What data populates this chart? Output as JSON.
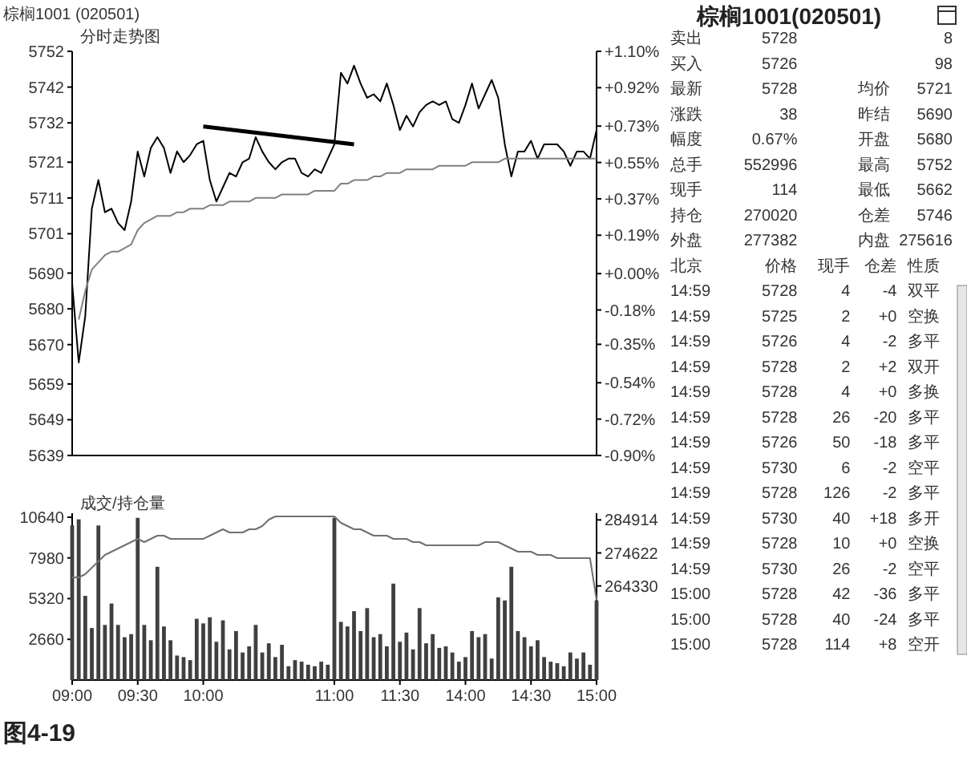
{
  "chart_data": [
    {
      "type": "line",
      "title": "棕榈1001 (020501)",
      "subtitle": "分时走势图",
      "categories": [
        null,
        null,
        null,
        null,
        null,
        null,
        null,
        null,
        null,
        null,
        null,
        null,
        null,
        null,
        null,
        null,
        null,
        null,
        null,
        null,
        null,
        null,
        null,
        null,
        null,
        null,
        null,
        null,
        null,
        null,
        null,
        null,
        null,
        null,
        null,
        null,
        null,
        null,
        null,
        null,
        null,
        null,
        null,
        null,
        null,
        null,
        null,
        null,
        null,
        null,
        null,
        null,
        null,
        null,
        null,
        null,
        null,
        null,
        null,
        null,
        null,
        null,
        null,
        null,
        null,
        null,
        null,
        null,
        null,
        null,
        null,
        null,
        null,
        null,
        null,
        null,
        null,
        null,
        null,
        null,
        null
      ],
      "tick_labels": "y",
      "ylim": [
        5639,
        5752
      ],
      "yticks": [
        5752,
        5742,
        5732,
        5721,
        5711,
        5701,
        5690,
        5680,
        5670,
        5659,
        5649,
        5639
      ],
      "y2lim": [
        -0.9,
        1.1
      ],
      "y2ticks": [
        {
          "value": 1.1,
          "label": "+1.10%"
        },
        {
          "value": 0.92,
          "label": "+0.92%"
        },
        {
          "value": 0.73,
          "label": "+0.73%"
        },
        {
          "value": 0.55,
          "label": "+0.55%"
        },
        {
          "value": 0.37,
          "label": "+0.37%"
        },
        {
          "value": 0.19,
          "label": "+0.19%"
        },
        {
          "value": 0,
          "label": "+0.00%"
        },
        {
          "value": -0.18,
          "label": "-0.18%"
        },
        {
          "value": -0.35,
          "label": "-0.35%"
        },
        {
          "value": -0.54,
          "label": "-0.54%"
        },
        {
          "value": -0.72,
          "label": "-0.72%"
        },
        {
          "value": -0.9,
          "label": "-0.90%"
        }
      ],
      "series": [
        {
          "color": "#000000",
          "values": [
            5687,
            5665,
            5678,
            5708,
            5716,
            5707,
            5708,
            5704,
            5702,
            5710,
            5724,
            5717,
            5725,
            5728,
            5725,
            5718,
            5724,
            5721,
            5723,
            5726,
            5727,
            5716,
            5710,
            5714,
            5718,
            5717,
            5721,
            5722,
            5728,
            5724,
            5721,
            5719,
            5721,
            5722,
            5722,
            5718,
            5717,
            5719,
            5718,
            5722,
            5726,
            5746,
            5743,
            5748,
            5743,
            5739,
            5740,
            5738,
            5743,
            5737,
            5730,
            5734,
            5731,
            5735,
            5737,
            5738,
            5737,
            5738,
            5733,
            5732,
            5737,
            5743,
            5736,
            5740,
            5744,
            5739,
            5726,
            5717,
            5724,
            5724,
            5727,
            5722,
            5726,
            5726,
            5726,
            5724,
            5720,
            5724,
            5724,
            5722,
            5730
          ]
        },
        {
          "color": "#808080",
          "values": [
            null,
            5677,
            5685,
            5691,
            5693,
            5695,
            5696,
            5696,
            5697,
            5698,
            5702,
            5704,
            5705,
            5706,
            5706,
            5706,
            5707,
            5707,
            5708,
            5708,
            5708,
            5709,
            5709,
            5709,
            5710,
            5710,
            5710,
            5710,
            5711,
            5711,
            5711,
            5711,
            5712,
            5712,
            5712,
            5712,
            5712,
            5713,
            5713,
            5713,
            5713,
            5715,
            5715,
            5716,
            5716,
            5716,
            5717,
            5717,
            5718,
            5718,
            5718,
            5719,
            5719,
            5719,
            5719,
            5719,
            5720,
            5720,
            5720,
            5720,
            5720,
            5721,
            5721,
            5721,
            5721,
            5721,
            5722,
            5722,
            5722,
            5722,
            5722,
            5722,
            5722,
            5722,
            5722,
            5722,
            5722,
            5722,
            5722,
            5722,
            5722
          ]
        },
        {
          "color": "#000000",
          "values": [
            null,
            null,
            null,
            null,
            null,
            null,
            null,
            null,
            null,
            null,
            null,
            null,
            null,
            null,
            null,
            null,
            null,
            null,
            null,
            null,
            5731,
            null,
            null,
            null,
            null,
            null,
            null,
            null,
            null,
            null,
            null,
            null,
            null,
            null,
            null,
            null,
            null,
            null,
            null,
            null,
            null,
            null,
            null,
            5726,
            null,
            null,
            null,
            null,
            null,
            null,
            null,
            null,
            null,
            null,
            null,
            null,
            null,
            null,
            null,
            null,
            null,
            null,
            null,
            null,
            null,
            null,
            null,
            null,
            null,
            null,
            null,
            null,
            null,
            null,
            null,
            null,
            null,
            null,
            null,
            null,
            null
          ]
        }
      ]
    },
    {
      "type": "bar",
      "title": "成交/持仓量",
      "categories": [
        "09:00",
        null,
        null,
        null,
        null,
        null,
        null,
        null,
        null,
        null,
        "09:30",
        null,
        null,
        null,
        null,
        null,
        null,
        null,
        null,
        null,
        "10:00",
        null,
        null,
        null,
        null,
        null,
        null,
        null,
        null,
        null,
        null,
        null,
        null,
        null,
        null,
        null,
        null,
        null,
        null,
        null,
        "11:00",
        null,
        null,
        null,
        null,
        null,
        null,
        null,
        null,
        null,
        "11:30",
        null,
        null,
        null,
        null,
        null,
        null,
        null,
        null,
        null,
        "14:00",
        null,
        null,
        null,
        null,
        null,
        null,
        null,
        null,
        null,
        "14:30",
        null,
        null,
        null,
        null,
        null,
        null,
        null,
        null,
        null,
        "15:00"
      ],
      "ylim": [
        0,
        10900
      ],
      "yticks": [
        2660,
        5320,
        7980,
        10640
      ],
      "y2lim": [
        235000,
        287000
      ],
      "y2ticks": [
        264330,
        274622,
        284914
      ],
      "annotations": [
        "图4-19"
      ],
      "series": [
        {
          "type": "bar",
          "color": "#404040",
          "values": [
            10100,
            10500,
            5500,
            3400,
            10100,
            3600,
            5000,
            3600,
            2800,
            3000,
            10600,
            3600,
            2600,
            7400,
            3500,
            2600,
            1600,
            1500,
            1300,
            4000,
            3700,
            4100,
            2500,
            3900,
            2000,
            3200,
            1800,
            2200,
            3600,
            1800,
            2400,
            1500,
            2300,
            900,
            1300,
            1200,
            1000,
            900,
            1200,
            1000,
            10600,
            3800,
            3500,
            4500,
            3200,
            4700,
            2800,
            3000,
            2200,
            6300,
            2500,
            3100,
            2000,
            4700,
            2400,
            3000,
            2100,
            2200,
            1800,
            1200,
            1500,
            3200,
            2800,
            3000,
            1400,
            5400,
            5200,
            7400,
            3200,
            2800,
            2200,
            2600,
            1500,
            1200,
            1100,
            900,
            1800,
            1400,
            1800,
            1000,
            5200
          ]
        },
        {
          "type": "line",
          "axis": "y2",
          "color": "#707070",
          "values": [
            267000,
            267000,
            268000,
            270000,
            272000,
            274000,
            275000,
            276000,
            277000,
            278000,
            279000,
            278000,
            279000,
            280000,
            280000,
            279000,
            279000,
            279000,
            279000,
            279000,
            279000,
            280000,
            281000,
            282000,
            281000,
            281000,
            281000,
            282000,
            282000,
            283000,
            285000,
            286000,
            286000,
            286000,
            286000,
            286000,
            286000,
            286000,
            286000,
            286000,
            286000,
            284000,
            283000,
            282000,
            282000,
            281000,
            280000,
            280000,
            280000,
            279000,
            279000,
            279000,
            278000,
            278000,
            277000,
            277000,
            277000,
            277000,
            277000,
            277000,
            277000,
            277000,
            277000,
            278000,
            278000,
            278000,
            277000,
            276000,
            275000,
            275000,
            275000,
            274000,
            274000,
            274000,
            273000,
            273000,
            273000,
            273000,
            273000,
            273000,
            260000
          ]
        }
      ]
    },
    {
      "type": "other",
      "title": "棕榈1001(020501)",
      "annotations": [
        "卖出 5728 8",
        "买入 5726 98",
        "最新 5728 均价 5721",
        "涨跌 38 昨结 5690",
        "幅度 0.67% 开盘 5680",
        "总手 552996 最高 5752",
        "现手 114 最低 5662",
        "持仓 270020 仓差 5746",
        "外盘 277382 内盘 275616",
        "北京 价格 现手 仓差 性质",
        "14:59 5728 4 -4 双平",
        "14:59 5725 2 +0 空换",
        "14:59 5726 4 -2 多平",
        "14:59 5728 2 +2 双开",
        "14:59 5728 4 +0 多换",
        "14:59 5728 26 -20 多平",
        "14:59 5726 50 -18 多平",
        "14:59 5730 6 -2 空平",
        "14:59 5728 126 -2 多平",
        "14:59 5730 40 +18 多开",
        "14:59 5728 10 +0 空换",
        "14:59 5730 26 -2 空平",
        "15:00 5728 42 -36 多平",
        "15:00 5728 40 -24 多平",
        "15:00 5728 114 +8 空开"
      ]
    }
  ]
}
